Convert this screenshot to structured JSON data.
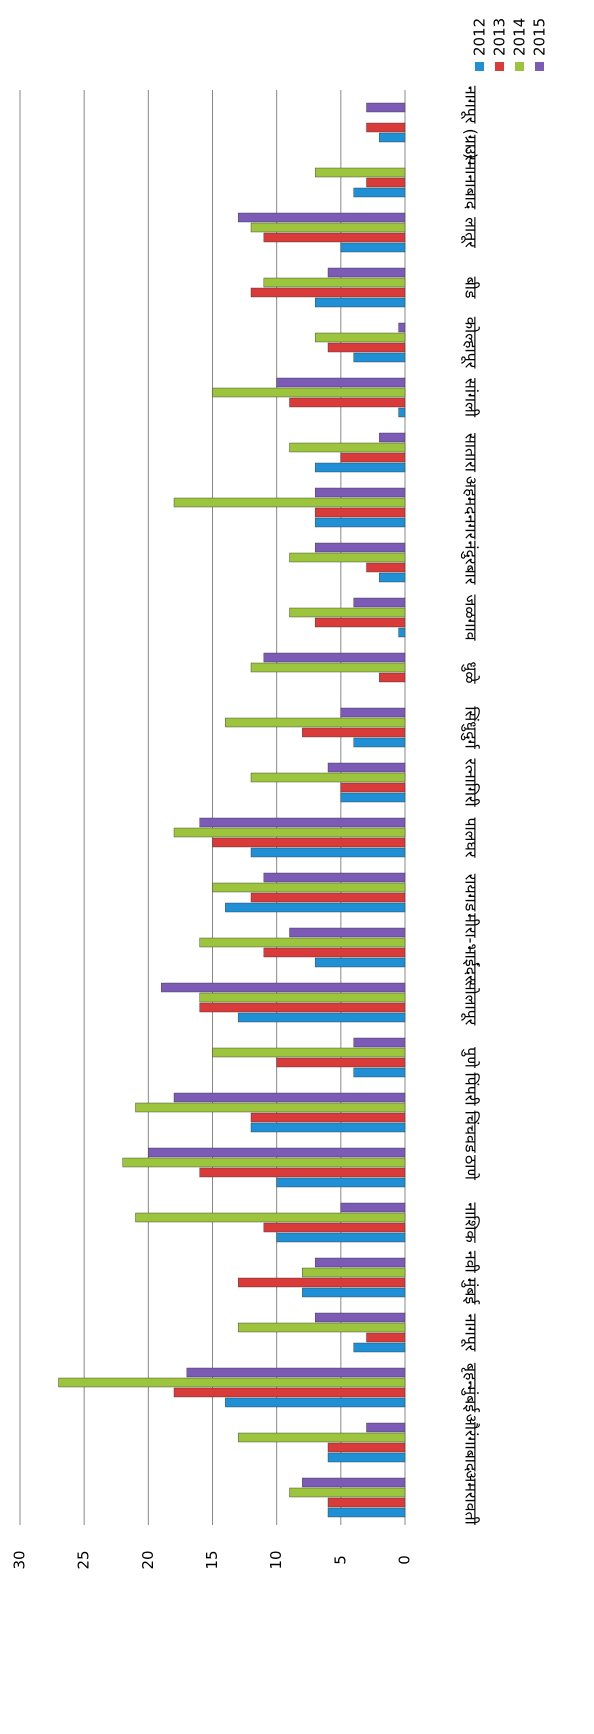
{
  "chart_data": {
    "type": "bar",
    "orientation": "horizontal",
    "categories": [
      "अमरावती",
      "औरंगाबाद",
      "बृहन्मुंबई",
      "नागपूर",
      "नवी मुंबई",
      "नाशिक",
      "ठाणे",
      "पिंपरी चिंचवड",
      "पुणे",
      "सोलापूर",
      "मीरा-भाईंदर",
      "रायगड",
      "पालघर",
      "रत्नागिरी",
      "सिंधुदुर्ग",
      "धुळे",
      "जळगाव",
      "नंदुरबार",
      "अहमदनगर",
      "सातारा",
      "सांगली",
      "कोल्हापूर",
      "बीड",
      "लातूर",
      "उस्मानाबाद",
      "नागपूर (ग्रा.)"
    ],
    "series": [
      {
        "name": "2012",
        "color": "#1f8fd6",
        "values": [
          6,
          6,
          14,
          4,
          8,
          10,
          10,
          12,
          4,
          13,
          7,
          14,
          12,
          5,
          4,
          0,
          0.5,
          2,
          7,
          7,
          0.5,
          4,
          7,
          5,
          4,
          2
        ]
      },
      {
        "name": "2013",
        "color": "#d93a3a",
        "values": [
          6,
          6,
          18,
          3,
          13,
          11,
          16,
          12,
          10,
          16,
          11,
          12,
          15,
          5,
          8,
          2,
          7,
          3,
          7,
          5,
          9,
          6,
          12,
          11,
          3,
          3
        ]
      },
      {
        "name": "2014",
        "color": "#9cc43c",
        "values": [
          9,
          13,
          27,
          13,
          8,
          21,
          22,
          21,
          15,
          16,
          16,
          15,
          18,
          12,
          14,
          12,
          9,
          9,
          18,
          9,
          15,
          7,
          11,
          12,
          7,
          0
        ]
      },
      {
        "name": "2015",
        "color": "#7b5bb5",
        "values": [
          8,
          3,
          17,
          7,
          7,
          5,
          20,
          18,
          4,
          19,
          9,
          11,
          16,
          6,
          5,
          11,
          4,
          7,
          7,
          2,
          10,
          0.5,
          6,
          13,
          0,
          3
        ]
      }
    ],
    "ylim": [
      0,
      30
    ],
    "yticks": [
      0,
      5,
      10,
      15,
      20,
      25,
      30
    ],
    "grid": true,
    "legend": "top-right"
  }
}
